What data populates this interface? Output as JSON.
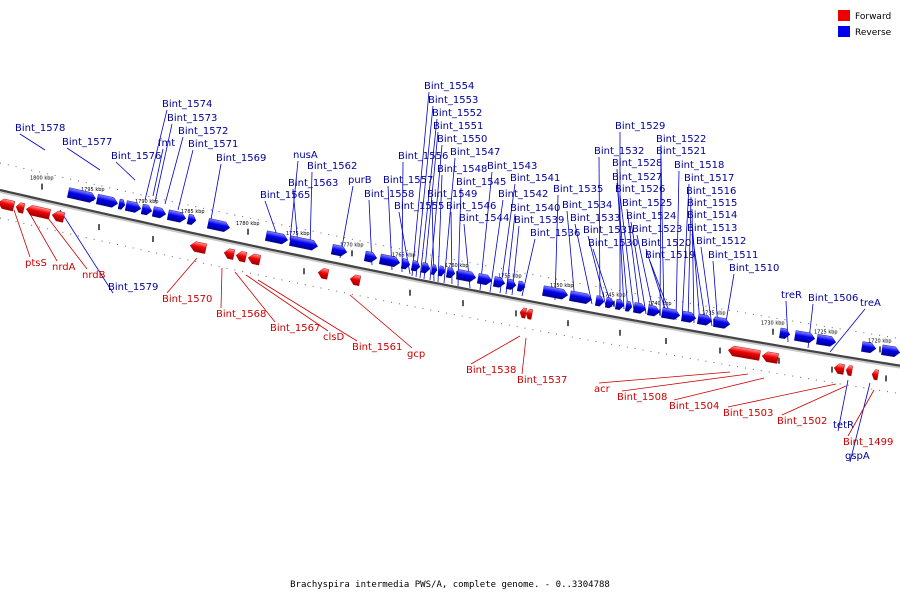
{
  "legend": {
    "forward_label": "Forward",
    "reverse_label": "Reverse",
    "forward_color": "#ee0000",
    "reverse_color": "#0000ee"
  },
  "caption": "Brachyspira intermedia PWS/A, complete genome. - 0..3304788",
  "kbp_ticks": [
    "1800 kbp",
    "1795 kbp",
    "1790 kbp",
    "1785 kbp",
    "1780 kbp",
    "1775 kbp",
    "1770 kbp",
    "1765 kbp",
    "1760 kbp",
    "1755 kbp",
    "1750 kbp",
    "1745 kbp",
    "1740 kbp",
    "1735 kbp",
    "1730 kbp",
    "1725 kbp",
    "1720 kbp"
  ],
  "forward_genes": [
    "ptsS",
    "nrdA",
    "nrdB",
    "Bint_1570",
    "Bint_1568",
    "Bint_1567",
    "clsD",
    "Bint_1561",
    "gcp",
    "Bint_1538",
    "Bint_1537",
    "acr",
    "Bint_1508",
    "Bint_1504",
    "Bint_1503",
    "Bint_1502",
    "Bint_1499"
  ],
  "reverse_genes": [
    "Bint_1578",
    "Bint_1577",
    "Bint_1576",
    "fmt",
    "Bint_1574",
    "Bint_1573",
    "Bint_1572",
    "Bint_1571",
    "Bint_1569",
    "Bint_1565",
    "nusA",
    "Bint_1563",
    "Bint_1562",
    "purB",
    "Bint_1558",
    "Bint_1557",
    "Bint_1556",
    "Bint_1555",
    "Bint_1554",
    "Bint_1553",
    "Bint_1552",
    "Bint_1551",
    "Bint_1550",
    "Bint_1549",
    "Bint_1548",
    "Bint_1547",
    "Bint_1546",
    "Bint_1545",
    "Bint_1544",
    "Bint_1543",
    "Bint_1542",
    "Bint_1541",
    "Bint_1540",
    "Bint_1539",
    "Bint_1536",
    "Bint_1535",
    "Bint_1534",
    "Bint_1533",
    "Bint_1532",
    "Bint_1531",
    "Bint_1530",
    "Bint_1529",
    "Bint_1528",
    "Bint_1527",
    "Bint_1526",
    "Bint_1525",
    "Bint_1524",
    "Bint_1523",
    "Bint_1522",
    "Bint_1521",
    "Bint_1520",
    "Bint_1519",
    "Bint_1518",
    "Bint_1517",
    "Bint_1516",
    "Bint_1515",
    "Bint_1514",
    "Bint_1513",
    "Bint_1512",
    "Bint_1511",
    "Bint_1510",
    "Bint_1579",
    "treR",
    "Bint_1506",
    "treA",
    "tetR",
    "gspA"
  ]
}
